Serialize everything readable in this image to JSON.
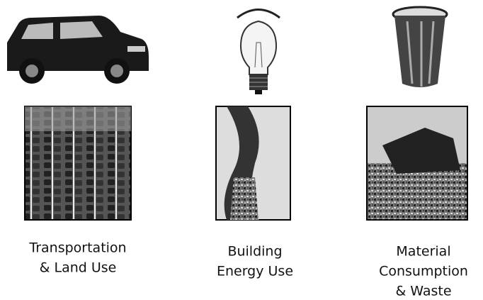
{
  "columns": [
    {
      "caption": [
        "Transportation",
        "& Land Use"
      ]
    },
    {
      "caption": [
        "Building",
        "Energy Use"
      ]
    },
    {
      "caption": [
        "Material",
        "Consumption",
        "& Waste"
      ]
    }
  ]
}
